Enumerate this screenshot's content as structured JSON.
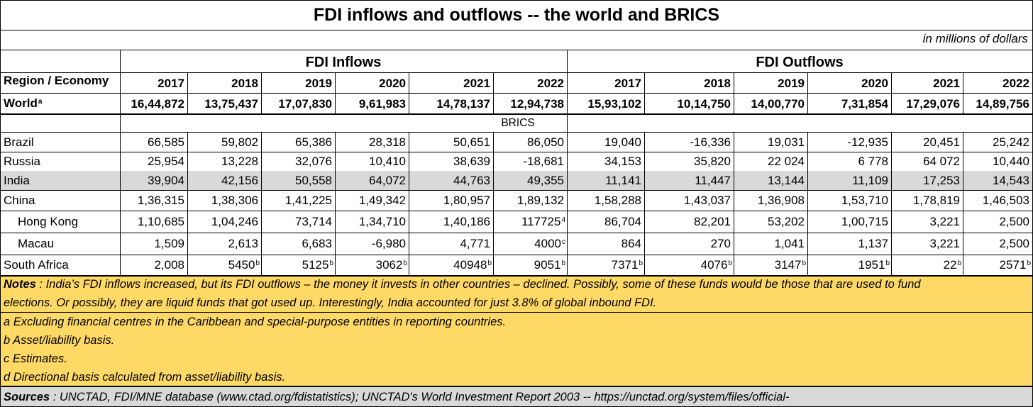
{
  "title": "FDI inflows and outflows -- the world and BRICS",
  "units": "in millions of dollars",
  "header": {
    "region_label": "Region  /  Economy",
    "inflows_label": "FDI Inflows",
    "outflows_label": "FDI Outflows",
    "inflow_years": [
      "2017",
      "2018",
      "2019",
      "2020",
      "2021",
      "2022"
    ],
    "outflow_years": [
      "2017",
      "2018",
      "2019",
      "2020",
      "2021",
      "2022"
    ]
  },
  "world": {
    "label": "World",
    "label_sup": "a",
    "values": [
      "16,44,872",
      "13,75,437",
      "17,07,830",
      "9,61,983",
      "14,78,137",
      "12,94,738",
      "15,93,102",
      "10,14,750",
      "14,00,770",
      "7,31,854",
      "17,29,076",
      "14,89,756"
    ]
  },
  "brics_label": "BRICS",
  "rows": [
    {
      "name": "Brazil",
      "values": [
        "66,585",
        "59,802",
        "65,386",
        "28,318",
        "50,651",
        "86,050",
        "19,040",
        "-16,336",
        "19,031",
        "-12,935",
        "20,451",
        "25,242"
      ],
      "sups": [
        "",
        "",
        "",
        "",
        "",
        "",
        "",
        "",
        "",
        "",
        "",
        ""
      ]
    },
    {
      "name": "Russia",
      "values": [
        "25,954",
        "13,228",
        "32,076",
        "10,410",
        "38,639",
        "-18,681",
        "34,153",
        "35,820",
        "22 024",
        "6 778",
        "64 072",
        "10,440"
      ],
      "sups": [
        "",
        "",
        "",
        "",
        "",
        "",
        "",
        "",
        "",
        "",
        "",
        ""
      ]
    },
    {
      "name": "India",
      "values": [
        "39,904",
        "42,156",
        "50,558",
        "64,072",
        "44,763",
        "49,355",
        "11,141",
        "11,447",
        "13,144",
        "11,109",
        "17,253",
        "14,543"
      ],
      "sups": [
        "",
        "",
        "",
        "",
        "",
        "",
        "",
        "",
        "",
        "",
        "",
        ""
      ]
    },
    {
      "name": "China",
      "values": [
        "1,36,315",
        "1,38,306",
        "1,41,225",
        "1,49,342",
        "1,80,957",
        "1,89,132",
        "1,58,288",
        "1,43,037",
        "1,36,908",
        "1,53,710",
        "1,78,819",
        "1,46,503"
      ],
      "sups": [
        "",
        "",
        "",
        "",
        "",
        "",
        "",
        "",
        "",
        "",
        "",
        ""
      ]
    },
    {
      "name": "Hong Kong",
      "values": [
        "1,10,685",
        "1,04,246",
        "73,714",
        "1,34,710",
        "1,40,186",
        "117725",
        "86,704",
        "82,201",
        "53,202",
        "1,00,715",
        "3,221",
        "2,500"
      ],
      "sups": [
        "",
        "",
        "",
        "",
        "",
        "4",
        "",
        "",
        "",
        "",
        "",
        ""
      ]
    },
    {
      "name": "Macau",
      "values": [
        "1,509",
        "2,613",
        "6,683",
        "-6,980",
        "4,771",
        "4000",
        "864",
        "270",
        "1,041",
        "1,137",
        "3,221",
        "2,500"
      ],
      "sups": [
        "",
        "",
        "",
        "",
        "",
        "c",
        "",
        "",
        "",
        "",
        "",
        ""
      ]
    },
    {
      "name": "South Africa",
      "values": [
        "2,008",
        "5450",
        "5125",
        "3062",
        "40948",
        "9051",
        "7371",
        "4076",
        "3147",
        "1951",
        "22",
        "2571"
      ],
      "sups": [
        "",
        "b",
        "b",
        "b",
        "b",
        "b",
        "b",
        "b",
        "b",
        "b",
        "b",
        "b"
      ]
    }
  ],
  "notes": {
    "label": "Notes",
    "line1": " :  India’s FDI inflows increased, but its FDI outflows – the money it invests in other countries – declined.  Possibly, some of these funds would be those that are used to fund",
    "line2": "elections.  Or possibly, they are liquid funds that got  used up.  Interestingly, India accounted for just 3.8% of global inbound FDI.",
    "footnotes": [
      "a Excluding financial centres in the Caribbean and special-purpose entities in reporting countries.",
      "b Asset/liability basis.",
      "c Estimates.",
      "d Directional basis calculated from asset/liability basis."
    ]
  },
  "sources": {
    "label": "Sources",
    "text": " : UNCTAD, FDI/MNE database (www.ctad.org/fdistatistics); UNCTAD's World Investment Report 2003 -- https://unctad.org/system/files/official-"
  },
  "colors": {
    "highlight_row": "#d9d9d9",
    "notes_bg": "#ffd966",
    "sources_bg": "#d9d9d9"
  }
}
